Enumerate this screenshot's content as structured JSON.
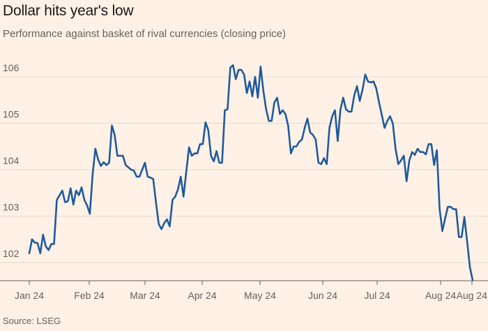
{
  "header": {
    "title": "Dollar hits year's low",
    "subtitle": "Performance against basket of rival currencies (closing price)"
  },
  "footer": {
    "source": "Source: LSEG"
  },
  "chart_data": {
    "type": "line",
    "title": "Dollar hits year's low",
    "subtitle": "Performance against basket of rival currencies (closing price)",
    "xlabel": "",
    "ylabel": "",
    "ylim": [
      101.5,
      106.5
    ],
    "yticks": [
      102,
      103,
      104,
      105,
      106
    ],
    "xtick_labels": [
      "Jan 24",
      "Feb 24",
      "Mar 24",
      "Apr 24",
      "May 24",
      "Jun 24",
      "Jul 24",
      "Aug 24",
      "Aug 24"
    ],
    "grid": "horizontal",
    "color": "#1f5a9c",
    "series": [
      {
        "values": [
          102.2,
          102.5,
          102.43,
          102.42,
          102.2,
          102.6,
          102.35,
          102.27,
          102.4,
          102.4,
          103.35,
          103.45,
          103.55,
          103.3,
          103.32,
          103.6,
          103.25,
          103.55,
          103.45,
          103.62,
          103.35,
          103.23,
          103.05,
          103.9,
          104.45,
          104.22,
          104.08,
          104.16,
          104.1,
          104.15,
          104.95,
          104.75,
          104.3,
          104.3,
          104.3,
          104.1,
          104.05,
          104.0,
          103.98,
          103.85,
          103.85,
          104.0,
          104.15,
          103.85,
          103.83,
          103.8,
          103.3,
          102.83,
          102.72,
          102.85,
          102.93,
          102.78,
          103.35,
          103.42,
          103.58,
          103.85,
          103.42,
          103.95,
          104.48,
          104.3,
          104.35,
          104.35,
          104.55,
          104.55,
          105.02,
          104.85,
          104.3,
          104.18,
          104.4,
          104.15,
          104.15,
          105.28,
          105.3,
          106.2,
          106.25,
          105.95,
          106.15,
          106.15,
          106.05,
          105.65,
          105.9,
          105.58,
          106.0,
          105.55,
          106.22,
          105.7,
          105.3,
          105.05,
          105.05,
          105.45,
          105.55,
          105.2,
          105.28,
          105.2,
          104.95,
          104.35,
          104.5,
          104.5,
          104.6,
          104.65,
          104.9,
          105.1,
          104.8,
          104.75,
          104.65,
          104.15,
          104.12,
          104.25,
          104.12,
          104.9,
          105.15,
          105.28,
          104.62,
          105.3,
          105.55,
          105.3,
          105.25,
          105.25,
          105.6,
          105.8,
          105.48,
          105.72,
          106.05,
          105.9,
          105.88,
          105.9,
          105.75,
          105.45,
          105.18,
          104.9,
          105.05,
          105.15,
          105.0,
          104.45,
          104.12,
          104.2,
          104.3,
          103.75,
          104.2,
          104.38,
          104.32,
          104.45,
          104.38,
          104.38,
          104.33,
          104.55,
          104.55,
          104.1,
          104.42,
          103.15,
          102.68,
          102.95,
          103.2,
          103.2,
          103.15,
          103.15,
          102.55,
          102.55,
          102.98,
          102.45,
          101.9,
          101.62
        ]
      }
    ]
  }
}
